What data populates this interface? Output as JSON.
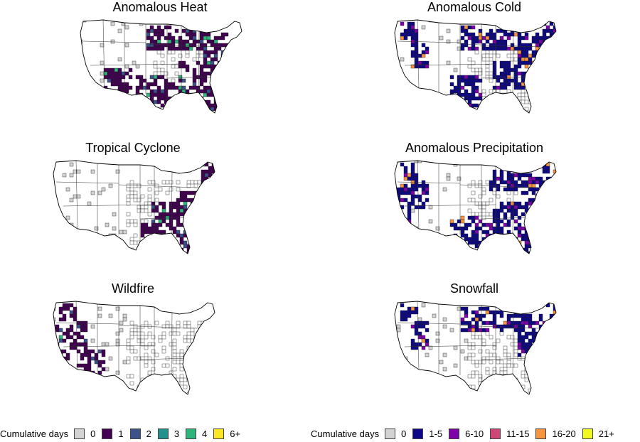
{
  "maps": [
    {
      "id": "heat",
      "title": "Anomalous Heat",
      "legend": "a",
      "colored_regions": [
        "southwest-desert",
        "northern-plains-east",
        "great-lakes",
        "northeast",
        "mid-atlantic",
        "southeast",
        "texas",
        "gulf-coast"
      ],
      "dominant_level": "1"
    },
    {
      "id": "cold",
      "title": "Anomalous Cold",
      "legend": "b",
      "colored_regions": [
        "pacific-northwest",
        "nevada-basin",
        "northern-plains-east",
        "great-lakes",
        "northeast",
        "new-england",
        "mid-atlantic",
        "southeast",
        "texas"
      ],
      "dominant_level": "1-5"
    },
    {
      "id": "cyclone",
      "title": "Tropical Cyclone",
      "legend": "a",
      "colored_regions": [
        "mid-atlantic",
        "southeast",
        "gulf-coast",
        "new-england"
      ],
      "dominant_level": "1"
    },
    {
      "id": "precip",
      "title": "Anomalous Precipitation",
      "legend": "b",
      "colored_regions": [
        "pacific-northwest",
        "california",
        "nevada-basin",
        "texas",
        "southeast",
        "gulf-coast",
        "mid-atlantic",
        "northeast",
        "new-england",
        "great-lakes"
      ],
      "dominant_level": "1-5"
    },
    {
      "id": "wildfire",
      "title": "Wildfire",
      "legend": "a",
      "colored_regions": [
        "pacific-northwest",
        "california",
        "nevada-basin",
        "southwest-desert"
      ],
      "dominant_level": "1"
    },
    {
      "id": "snow",
      "title": "Snowfall",
      "legend": "b",
      "colored_regions": [
        "pacific-northwest",
        "nevada-basin",
        "northern-plains-east",
        "great-lakes",
        "northeast",
        "new-england",
        "mid-atlantic"
      ],
      "dominant_level": "1-5"
    }
  ],
  "legend_a": {
    "title": "Cumulative days",
    "items": [
      {
        "label": "0",
        "color": "#d3d3d3"
      },
      {
        "label": "1",
        "color": "#440154"
      },
      {
        "label": "2",
        "color": "#3b528b"
      },
      {
        "label": "3",
        "color": "#21918c"
      },
      {
        "label": "4",
        "color": "#2fb47c"
      },
      {
        "label": "6+",
        "color": "#fde725"
      }
    ]
  },
  "legend_b": {
    "title": "Cumulative days",
    "items": [
      {
        "label": "0",
        "color": "#d3d3d3"
      },
      {
        "label": "1-5",
        "color": "#0d0887"
      },
      {
        "label": "6-10",
        "color": "#7e03a8"
      },
      {
        "label": "11-15",
        "color": "#cc4778"
      },
      {
        "label": "16-20",
        "color": "#f89540"
      },
      {
        "label": "21+",
        "color": "#f0f921"
      }
    ]
  }
}
